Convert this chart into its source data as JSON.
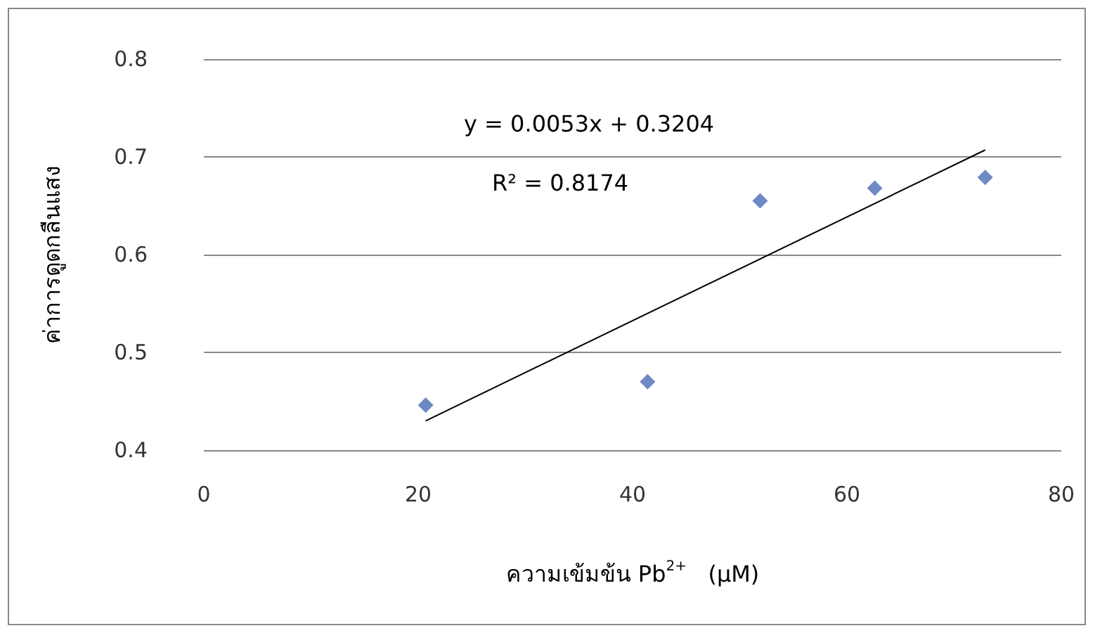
{
  "chart_data": {
    "type": "scatter",
    "xlabel": "ความเข้มข้น Pb$^{2+}$   (µM)",
    "ylabel": "ค่าการดูดกลืนแสง",
    "series": [
      {
        "color": "#4a6bb5",
        "marker": "diamond",
        "x": [
          20.7,
          41.4,
          51.9,
          62.6,
          72.9
        ],
        "values": [
          0.446,
          0.47,
          0.655,
          0.668,
          0.679
        ]
      },
      {
        "type": "line",
        "color": "#000000",
        "marker": "none",
        "x": [
          20.7,
          72.9
        ],
        "values": [
          0.43,
          0.707
        ]
      }
    ],
    "annotations": [
      "y = 0.0053x + 0.3204",
      "R² = 0.8174"
    ],
    "xlim": [
      0,
      80
    ],
    "xticks": [
      0,
      20,
      40,
      60,
      80
    ],
    "ylim": [
      0.4,
      0.8
    ],
    "yticks": [
      0.4,
      0.5,
      0.6,
      0.7,
      0.8
    ],
    "grid": "y"
  }
}
